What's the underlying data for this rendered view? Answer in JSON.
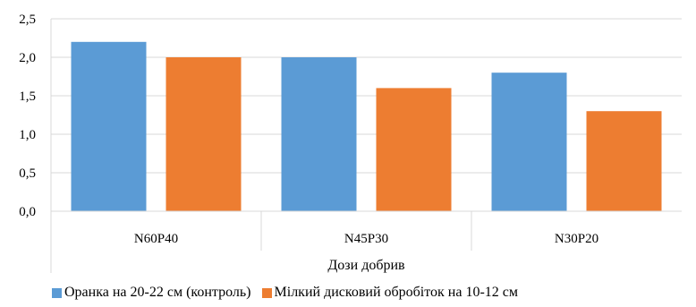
{
  "chart_data": {
    "type": "bar",
    "categories": [
      "N60P40",
      "N45P30",
      "N30P20"
    ],
    "series": [
      {
        "name": "Оранка на 20-22 см (контроль)",
        "values": [
          2.2,
          2.0,
          1.8
        ],
        "color": "#5B9BD5"
      },
      {
        "name": "Мілкий дисковий обробіток на 10-12 см",
        "values": [
          2.0,
          1.6,
          1.3
        ],
        "color": "#ED7D31"
      }
    ],
    "xlabel": "Дози добрив",
    "ylim": [
      0,
      2.5
    ],
    "yticks": [
      "0,0",
      "0,5",
      "1,0",
      "1,5",
      "2,0",
      "2,5"
    ],
    "grid": true,
    "legend_position": "bottom"
  }
}
